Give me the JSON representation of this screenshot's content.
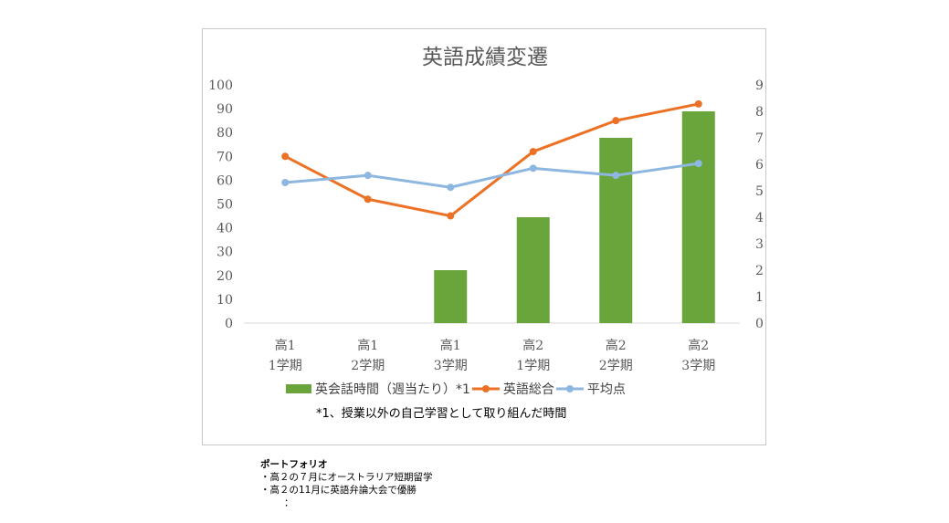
{
  "chart_data": {
    "type": "bar+line",
    "title": "英語成績変遷",
    "categories": [
      [
        "高1",
        "1学期"
      ],
      [
        "高1",
        "2学期"
      ],
      [
        "高1",
        "3学期"
      ],
      [
        "高2",
        "1学期"
      ],
      [
        "高2",
        "2学期"
      ],
      [
        "高2",
        "3学期"
      ]
    ],
    "left_axis": {
      "min": 0,
      "max": 100,
      "step": 10,
      "ticks": [
        "0",
        "10",
        "20",
        "30",
        "40",
        "50",
        "60",
        "70",
        "80",
        "90",
        "100"
      ]
    },
    "right_axis": {
      "min": 0,
      "max": 9,
      "step": 1,
      "ticks": [
        "0",
        "1",
        "2",
        "3",
        "4",
        "5",
        "6",
        "7",
        "8",
        "9"
      ]
    },
    "series": [
      {
        "name": "英会話時間（週当たり）*1",
        "type": "bar",
        "axis": "right",
        "color": "#6aa53c",
        "values": [
          0,
          0,
          2,
          4,
          7,
          8
        ]
      },
      {
        "name": "英語総合",
        "type": "line",
        "axis": "left",
        "color": "#ec7125",
        "values": [
          70,
          52,
          45,
          72,
          85,
          92
        ]
      },
      {
        "name": "平均点",
        "type": "line",
        "axis": "left",
        "color": "#8db6e0",
        "values": [
          59,
          62,
          57,
          65,
          62,
          67
        ]
      }
    ],
    "legend_position": "bottom",
    "footnote": "*1、授業以外の自己学習として取り組んだ時間"
  },
  "portfolio": {
    "title": "ポートフォリオ",
    "items": [
      "・高２の７月にオーストラリア短期留学",
      "・高２の11月に英語弁論大会で優勝"
    ],
    "continuation": "："
  }
}
